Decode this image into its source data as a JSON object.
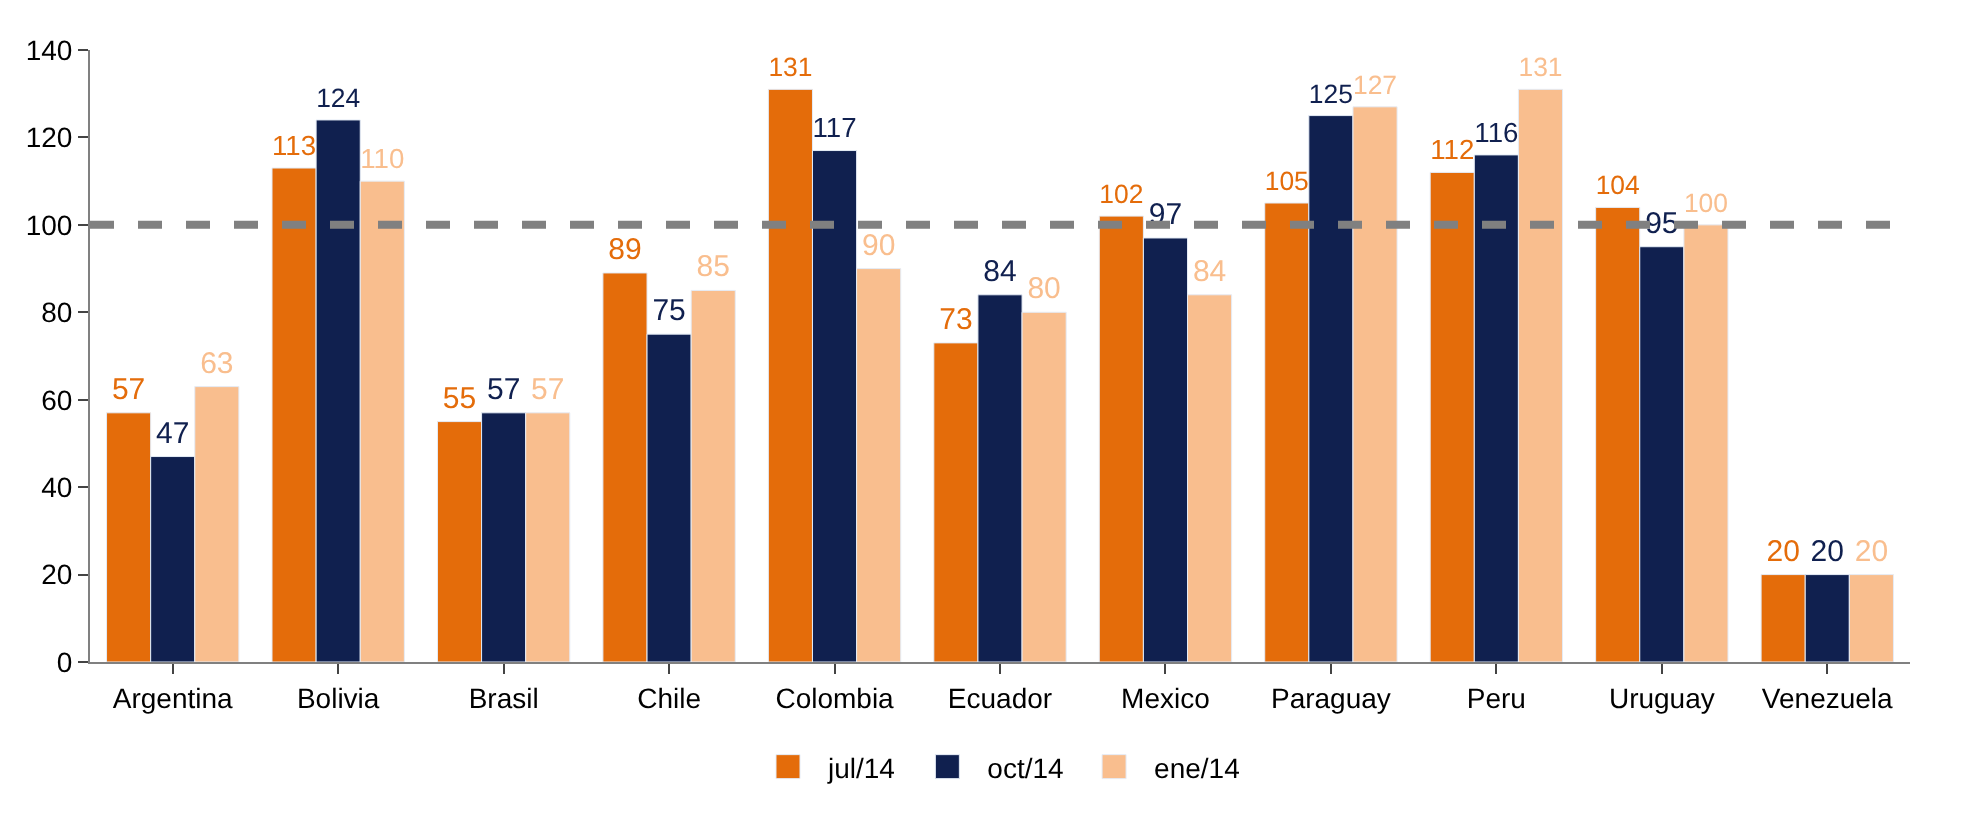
{
  "chart_data": {
    "type": "bar",
    "categories": [
      "Argentina",
      "Bolivia",
      "Brasil",
      "Chile",
      "Colombia",
      "Ecuador",
      "Mexico",
      "Paraguay",
      "Peru",
      "Uruguay",
      "Venezuela"
    ],
    "series": [
      {
        "name": "jul/14",
        "color": "#e46c0a",
        "values": [
          57,
          113,
          55,
          89,
          131,
          73,
          102,
          105,
          112,
          104,
          20
        ]
      },
      {
        "name": "oct/14",
        "color": "#10204f",
        "values": [
          47,
          124,
          57,
          75,
          117,
          84,
          97,
          125,
          116,
          95,
          20
        ]
      },
      {
        "name": "ene/14",
        "color": "#f9be8e",
        "values": [
          63,
          110,
          57,
          85,
          90,
          80,
          84,
          127,
          131,
          100,
          20
        ]
      }
    ],
    "ylim": [
      0,
      140
    ],
    "yticks": [
      0,
      20,
      40,
      60,
      80,
      100,
      120,
      140
    ],
    "ref_lines": [
      {
        "axis": "y",
        "value": 100,
        "color": "#808080",
        "line_style": "dashed"
      }
    ],
    "data_labels": true,
    "legend": "bottom"
  }
}
